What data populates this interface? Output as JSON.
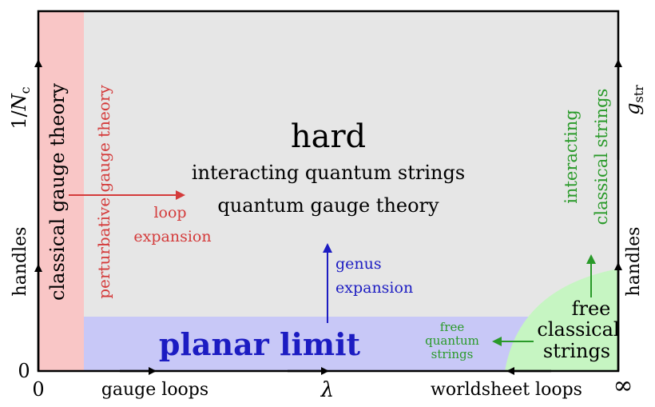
{
  "colors": {
    "background_region": "#e6e6e6",
    "classical_gauge": "#f9c6c6",
    "planar": "#c8c8f7",
    "free_classical": "#c6f5c2",
    "red_text": "#d43b3b",
    "blue_text": "#1c1cc2",
    "green_text": "#2a9a2a",
    "black": "#000000"
  },
  "labels": {
    "hard": "hard",
    "interacting_quantum_strings": "interacting quantum strings",
    "quantum_gauge_theory": "quantum gauge theory",
    "classical_gauge_theory": "classical gauge theory",
    "perturbative_gauge_theory": "perturbative gauge theory",
    "loop": "loop",
    "expansion_red": "expansion",
    "genus": "genus",
    "expansion_blue": "expansion",
    "planar_limit": "planar limit",
    "free_quantum_l1": "free",
    "free_quantum_l2": "quantum",
    "free_quantum_l3": "strings",
    "free_classical_l1": "free",
    "free_classical_l2": "classical",
    "free_classical_l3": "strings",
    "interacting_classical_l1": "interacting",
    "interacting_classical_l2": "classical strings"
  },
  "axes": {
    "left_top": "1/N_c",
    "left_bottom": "handles",
    "right_top": "g_str",
    "right_bottom": "handles",
    "bottom_left": "gauge loops",
    "bottom_mid": "λ",
    "bottom_right": "worldsheet loops",
    "origin_x": "0",
    "origin_y": "0",
    "infinity": "∞"
  }
}
